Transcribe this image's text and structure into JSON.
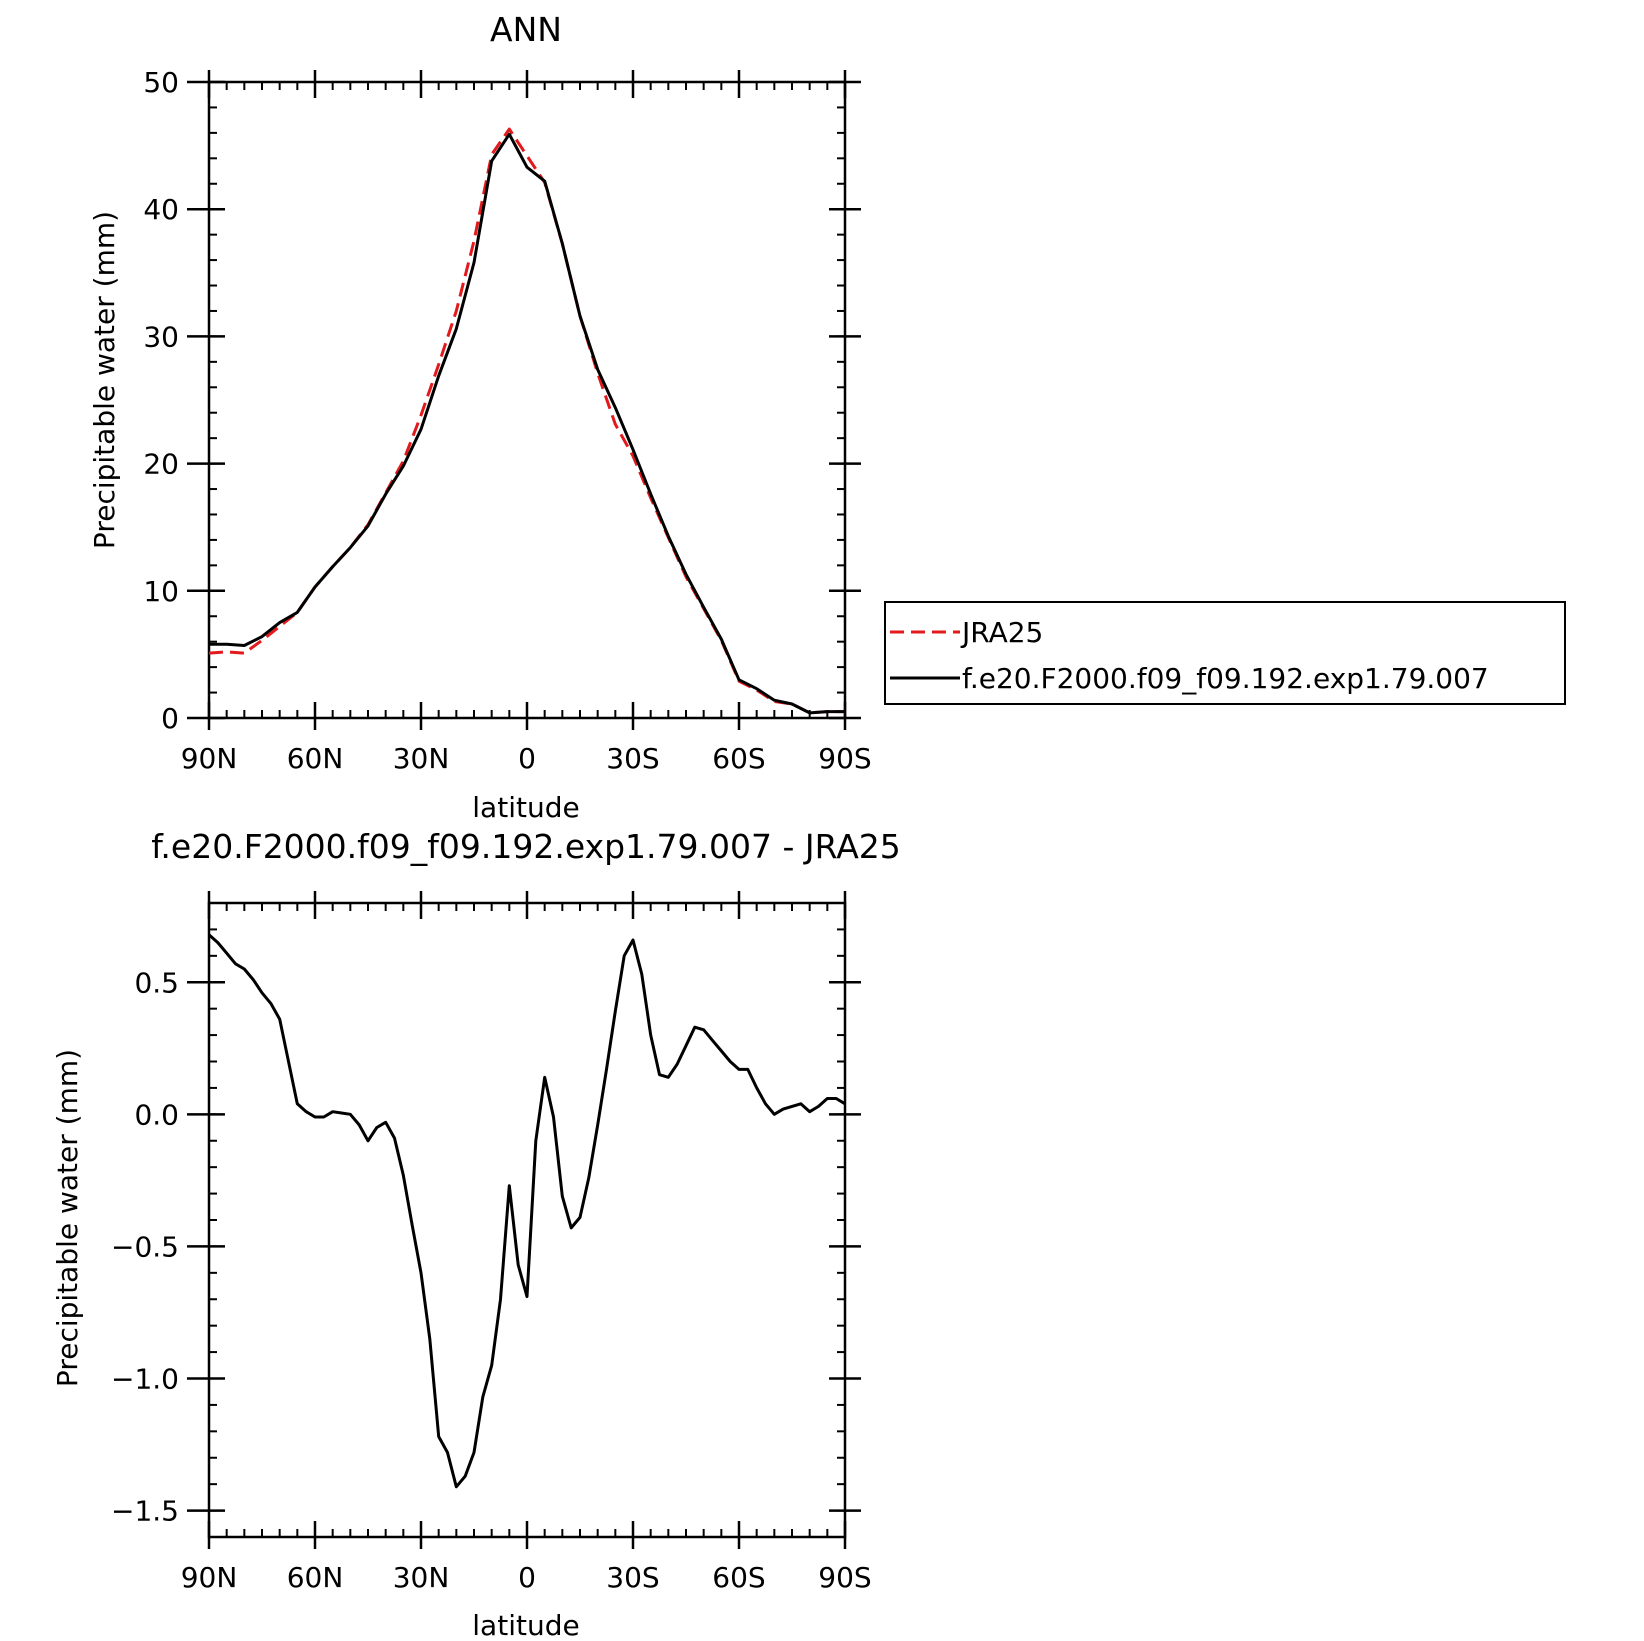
{
  "chart_data": [
    {
      "type": "line",
      "title": "ANN",
      "xlabel": "latitude",
      "ylabel": "Precipitable water (mm)",
      "xlim": [
        90,
        -90
      ],
      "ylim": [
        0,
        50
      ],
      "x_ticks": [
        {
          "value": 90,
          "label": "90N"
        },
        {
          "value": 60,
          "label": "60N"
        },
        {
          "value": 30,
          "label": "30N"
        },
        {
          "value": 0,
          "label": "0"
        },
        {
          "value": -30,
          "label": "30S"
        },
        {
          "value": -60,
          "label": "60S"
        },
        {
          "value": -90,
          "label": "90S"
        }
      ],
      "y_ticks": [
        {
          "value": 0,
          "label": "0"
        },
        {
          "value": 10,
          "label": "10"
        },
        {
          "value": 20,
          "label": "20"
        },
        {
          "value": 30,
          "label": "30"
        },
        {
          "value": 40,
          "label": "40"
        },
        {
          "value": 50,
          "label": "50"
        }
      ],
      "legend_position": "right",
      "series": [
        {
          "name": "JRA25",
          "color": "#e31a1c",
          "dash": true,
          "x": [
            90,
            85,
            80,
            75,
            70,
            65,
            60,
            55,
            50,
            45,
            40,
            35,
            30,
            25,
            20,
            15,
            10,
            5,
            0,
            -5,
            -10,
            -15,
            -20,
            -25,
            -30,
            -35,
            -40,
            -45,
            -50,
            -55,
            -60,
            -65,
            -70,
            -75,
            -80,
            -85,
            -90
          ],
          "y": [
            5.1,
            5.2,
            5.1,
            6.1,
            7.2,
            8.3,
            10.3,
            11.9,
            13.4,
            15.2,
            17.7,
            20.2,
            23.8,
            27.8,
            32.0,
            37.5,
            44.3,
            46.3,
            44.2,
            42.1,
            37.3,
            31.6,
            27.1,
            23.1,
            20.6,
            17.3,
            14.2,
            11.1,
            8.6,
            6.1,
            2.9,
            2.2,
            1.3,
            1.1,
            0.4,
            0.5,
            0.5
          ]
        },
        {
          "name": "f.e20.F2000.f09_f09.192.exp1.79.007",
          "color": "#000000",
          "dash": false,
          "x": [
            90,
            85,
            80,
            75,
            70,
            65,
            60,
            55,
            50,
            45,
            40,
            35,
            30,
            25,
            20,
            15,
            10,
            5,
            0,
            -5,
            -10,
            -15,
            -20,
            -25,
            -30,
            -35,
            -40,
            -45,
            -50,
            -55,
            -60,
            -65,
            -70,
            -75,
            -80,
            -85,
            -90
          ],
          "y": [
            5.8,
            5.8,
            5.7,
            6.4,
            7.5,
            8.3,
            10.3,
            11.9,
            13.4,
            15.1,
            17.6,
            19.8,
            22.7,
            26.9,
            30.6,
            35.8,
            43.8,
            45.9,
            43.3,
            42.2,
            37.3,
            31.6,
            27.4,
            24.4,
            21.1,
            17.6,
            14.3,
            11.3,
            8.7,
            6.2,
            3.0,
            2.3,
            1.4,
            1.1,
            0.4,
            0.5,
            0.5
          ]
        }
      ]
    },
    {
      "type": "line",
      "title": "f.e20.F2000.f09_f09.192.exp1.79.007 - JRA25",
      "xlabel": "latitude",
      "ylabel": "Precipitable water (mm)",
      "xlim": [
        90,
        -90
      ],
      "ylim": [
        -1.6,
        0.8
      ],
      "x_ticks": [
        {
          "value": 90,
          "label": "90N"
        },
        {
          "value": 60,
          "label": "60N"
        },
        {
          "value": 30,
          "label": "30N"
        },
        {
          "value": 0,
          "label": "0"
        },
        {
          "value": -30,
          "label": "30S"
        },
        {
          "value": -60,
          "label": "60S"
        },
        {
          "value": -90,
          "label": "90S"
        }
      ],
      "y_ticks": [
        {
          "value": -1.5,
          "label": "−1.5"
        },
        {
          "value": -1.0,
          "label": "−1.0"
        },
        {
          "value": -0.5,
          "label": "−0.5"
        },
        {
          "value": 0.0,
          "label": "0.0"
        },
        {
          "value": 0.5,
          "label": "0.5"
        }
      ],
      "series": [
        {
          "color": "#000000",
          "dash": false,
          "x": [
            90,
            87.5,
            85,
            82.5,
            80,
            77.5,
            75,
            72.5,
            70,
            67.5,
            65,
            62.5,
            60,
            57.5,
            55,
            52.5,
            50,
            47.5,
            45,
            42.5,
            40,
            37.5,
            35,
            32.5,
            30,
            27.5,
            25,
            22.5,
            20,
            17.5,
            15,
            12.5,
            10,
            7.5,
            5,
            2.5,
            0,
            -2.5,
            -5,
            -7.5,
            -10,
            -12.5,
            -15,
            -17.5,
            -20,
            -22.5,
            -25,
            -27.5,
            -30,
            -32.5,
            -35,
            -37.5,
            -40,
            -42.5,
            -45,
            -47.5,
            -50,
            -52.5,
            -55,
            -57.5,
            -60,
            -62.5,
            -65,
            -67.5,
            -70,
            -72.5,
            -75,
            -77.5,
            -80,
            -82.5,
            -85,
            -87.5,
            -90
          ],
          "y": [
            0.68,
            0.65,
            0.61,
            0.57,
            0.55,
            0.51,
            0.46,
            0.42,
            0.36,
            0.2,
            0.04,
            0.01,
            -0.01,
            -0.01,
            0.01,
            0.005,
            0.0,
            -0.04,
            -0.1,
            -0.05,
            -0.03,
            -0.09,
            -0.23,
            -0.42,
            -0.6,
            -0.85,
            -1.22,
            -1.28,
            -1.41,
            -1.37,
            -1.28,
            -1.07,
            -0.95,
            -0.7,
            -0.27,
            -0.57,
            -0.69,
            -0.1,
            0.14,
            -0.01,
            -0.31,
            -0.43,
            -0.39,
            -0.24,
            -0.04,
            0.17,
            0.39,
            0.6,
            0.66,
            0.53,
            0.3,
            0.15,
            0.14,
            0.19,
            0.26,
            0.33,
            0.32,
            0.28,
            0.24,
            0.2,
            0.17,
            0.17,
            0.1,
            0.04,
            0.0,
            0.02,
            0.03,
            0.04,
            0.01,
            0.03,
            0.06,
            0.06,
            0.04
          ]
        }
      ]
    }
  ]
}
